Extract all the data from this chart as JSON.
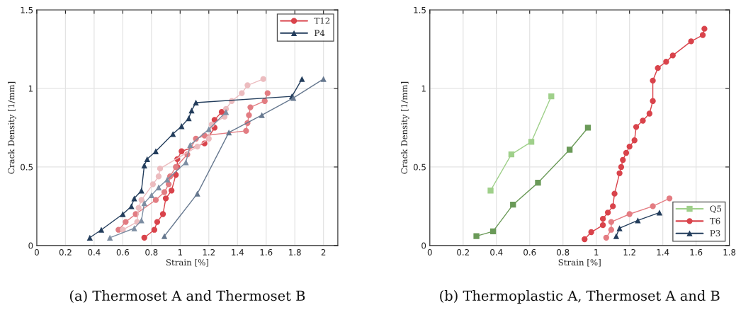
{
  "chart_data": [
    {
      "type": "line",
      "title": "(a) Thermoset A and Thermoset B",
      "xlabel": "Strain [%]",
      "ylabel": "Crack Density [1/mm]",
      "xlim": [
        0,
        2.1
      ],
      "ylim": [
        0,
        1.5
      ],
      "xticks": [
        0,
        0.2,
        0.4,
        0.6,
        0.8,
        1,
        1.2,
        1.4,
        1.6,
        1.8,
        2
      ],
      "yticks": [
        0,
        0.5,
        1,
        1.5
      ],
      "grid": true,
      "legend": "top right",
      "series": [
        {
          "name": "T12",
          "color": "#d9434b",
          "marker": "circle",
          "x": [
            0.75,
            0.82,
            0.84,
            0.88,
            0.9,
            0.94,
            0.97,
            0.98,
            0.98,
            1.01,
            1.17,
            1.24,
            1.24,
            1.29
          ],
          "values": [
            0.05,
            0.1,
            0.15,
            0.2,
            0.3,
            0.35,
            0.45,
            0.5,
            0.55,
            0.6,
            0.65,
            0.75,
            0.8,
            0.85
          ]
        },
        {
          "color": "#e27c82",
          "marker": "circle",
          "x": [
            0.57,
            0.62,
            0.69,
            0.83,
            0.89,
            0.92,
            0.93,
            0.97,
            1.05,
            1.11,
            1.17,
            1.46,
            1.47,
            1.48,
            1.49,
            1.59,
            1.61
          ],
          "values": [
            0.1,
            0.15,
            0.2,
            0.29,
            0.34,
            0.39,
            0.44,
            0.5,
            0.58,
            0.68,
            0.7,
            0.73,
            0.78,
            0.83,
            0.88,
            0.92,
            0.97
          ]
        },
        {
          "color": "#ecbcbf",
          "marker": "circle",
          "x": [
            0.6,
            0.7,
            0.71,
            0.73,
            0.81,
            0.85,
            0.86,
            1.12,
            1.2,
            1.22,
            1.31,
            1.32,
            1.36,
            1.43,
            1.47,
            1.58
          ],
          "values": [
            0.1,
            0.15,
            0.24,
            0.29,
            0.39,
            0.44,
            0.49,
            0.63,
            0.68,
            0.77,
            0.82,
            0.87,
            0.92,
            0.97,
            1.02,
            1.06
          ]
        },
        {
          "name": "P4",
          "color": "#233d5c",
          "marker": "triangle",
          "x": [
            0.37,
            0.45,
            0.6,
            0.66,
            0.68,
            0.73,
            0.75,
            0.77,
            0.83,
            0.95,
            1.01,
            1.06,
            1.08,
            1.11,
            1.78,
            1.85
          ],
          "values": [
            0.05,
            0.1,
            0.2,
            0.25,
            0.3,
            0.35,
            0.51,
            0.55,
            0.6,
            0.71,
            0.76,
            0.81,
            0.86,
            0.91,
            0.95,
            1.06
          ]
        },
        {
          "color": "#7d8ea3",
          "marker": "triangle",
          "x": [
            0.51,
            0.68,
            0.73,
            0.75,
            0.8,
            0.85,
            0.91,
            1.04,
            1.07,
            1.2,
            1.32
          ],
          "values": [
            0.05,
            0.11,
            0.16,
            0.27,
            0.32,
            0.37,
            0.42,
            0.53,
            0.64,
            0.74,
            0.85
          ]
        },
        {
          "color": "#66788f",
          "marker": "triangle",
          "x": [
            0.89,
            1.12,
            1.34,
            1.57,
            1.79,
            2.0
          ],
          "values": [
            0.06,
            0.33,
            0.72,
            0.83,
            0.94,
            1.06
          ]
        }
      ]
    },
    {
      "type": "line",
      "title": "(b) Thermoplastic A, Thermoset A and B",
      "xlabel": "Strain [%]",
      "ylabel": "Crack Density [1/mm]",
      "xlim": [
        0,
        1.8
      ],
      "ylim": [
        0,
        1.5
      ],
      "xticks": [
        0,
        0.2,
        0.4,
        0.6,
        0.8,
        1,
        1.2,
        1.4,
        1.6,
        1.8
      ],
      "yticks": [
        0,
        0.5,
        1,
        1.5
      ],
      "grid": true,
      "legend": "bottom right",
      "series": [
        {
          "name": "Q5",
          "color": "#9fd08a",
          "marker": "square",
          "x": [
            0.365,
            0.49,
            0.61,
            0.73
          ],
          "values": [
            0.35,
            0.58,
            0.66,
            0.95
          ]
        },
        {
          "color": "#6a9a58",
          "marker": "square",
          "x": [
            0.28,
            0.38,
            0.5,
            0.65,
            0.84,
            0.95
          ],
          "values": [
            0.06,
            0.09,
            0.26,
            0.4,
            0.61,
            0.75
          ]
        },
        {
          "name": "T6",
          "color": "#d9434b",
          "marker": "circle",
          "x": [
            0.93,
            0.97,
            1.04,
            1.04,
            1.07,
            1.1,
            1.11,
            1.14,
            1.15,
            1.16,
            1.18,
            1.2,
            1.23,
            1.24,
            1.28,
            1.32,
            1.34,
            1.34,
            1.37,
            1.42,
            1.46,
            1.57,
            1.64,
            1.65
          ],
          "values": [
            0.04,
            0.085,
            0.13,
            0.17,
            0.21,
            0.25,
            0.33,
            0.46,
            0.5,
            0.545,
            0.59,
            0.63,
            0.67,
            0.755,
            0.795,
            0.84,
            0.92,
            1.05,
            1.13,
            1.17,
            1.21,
            1.3,
            1.34,
            1.38
          ]
        },
        {
          "color": "#e47c82",
          "marker": "circle",
          "x": [
            1.06,
            1.09,
            1.09,
            1.2,
            1.34,
            1.44
          ],
          "values": [
            0.05,
            0.1,
            0.15,
            0.2,
            0.25,
            0.3
          ]
        },
        {
          "name": "P3",
          "color": "#233d5c",
          "marker": "triangle",
          "x": [
            1.12,
            1.14,
            1.25,
            1.38
          ],
          "values": [
            0.06,
            0.11,
            0.16,
            0.21
          ]
        }
      ]
    }
  ]
}
